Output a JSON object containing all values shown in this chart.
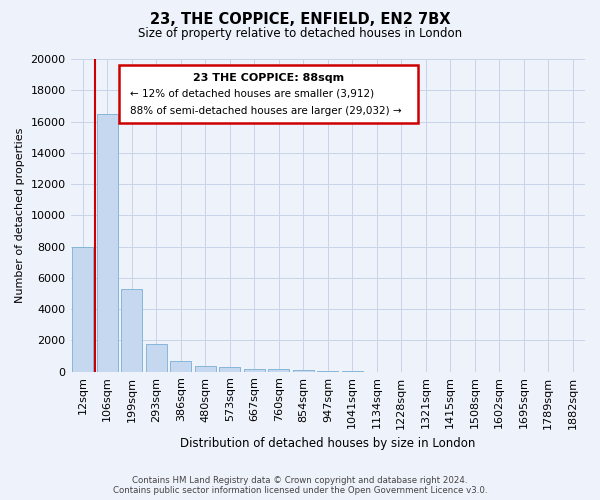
{
  "title_line1": "23, THE COPPICE, ENFIELD, EN2 7BX",
  "title_line2": "Size of property relative to detached houses in London",
  "xlabel": "Distribution of detached houses by size in London",
  "ylabel": "Number of detached properties",
  "footer_line1": "Contains HM Land Registry data © Crown copyright and database right 2024.",
  "footer_line2": "Contains public sector information licensed under the Open Government Licence v3.0.",
  "categories": [
    "12sqm",
    "106sqm",
    "199sqm",
    "293sqm",
    "386sqm",
    "480sqm",
    "573sqm",
    "667sqm",
    "760sqm",
    "854sqm",
    "947sqm",
    "1041sqm",
    "1134sqm",
    "1228sqm",
    "1321sqm",
    "1415sqm",
    "1508sqm",
    "1602sqm",
    "1695sqm",
    "1789sqm",
    "1882sqm"
  ],
  "values": [
    8000,
    16500,
    5300,
    1800,
    700,
    380,
    280,
    200,
    160,
    120,
    60,
    30,
    10,
    5,
    3,
    2,
    1,
    1,
    0,
    0,
    0
  ],
  "bar_color": "#c5d8f0",
  "bar_edge_color": "#7aafd4",
  "grid_color": "#c8d4e8",
  "annotation_box_color": "#ffffff",
  "annotation_border_color": "#cc0000",
  "vline_color": "#cc0000",
  "vline_x_index": 1,
  "ylim": [
    0,
    20000
  ],
  "yticks": [
    0,
    2000,
    4000,
    6000,
    8000,
    10000,
    12000,
    14000,
    16000,
    18000,
    20000
  ],
  "annotation_title": "23 THE COPPICE: 88sqm",
  "annotation_line1": "← 12% of detached houses are smaller (3,912)",
  "annotation_line2": "88% of semi-detached houses are larger (29,032) →",
  "bg_color": "#eef2fa"
}
